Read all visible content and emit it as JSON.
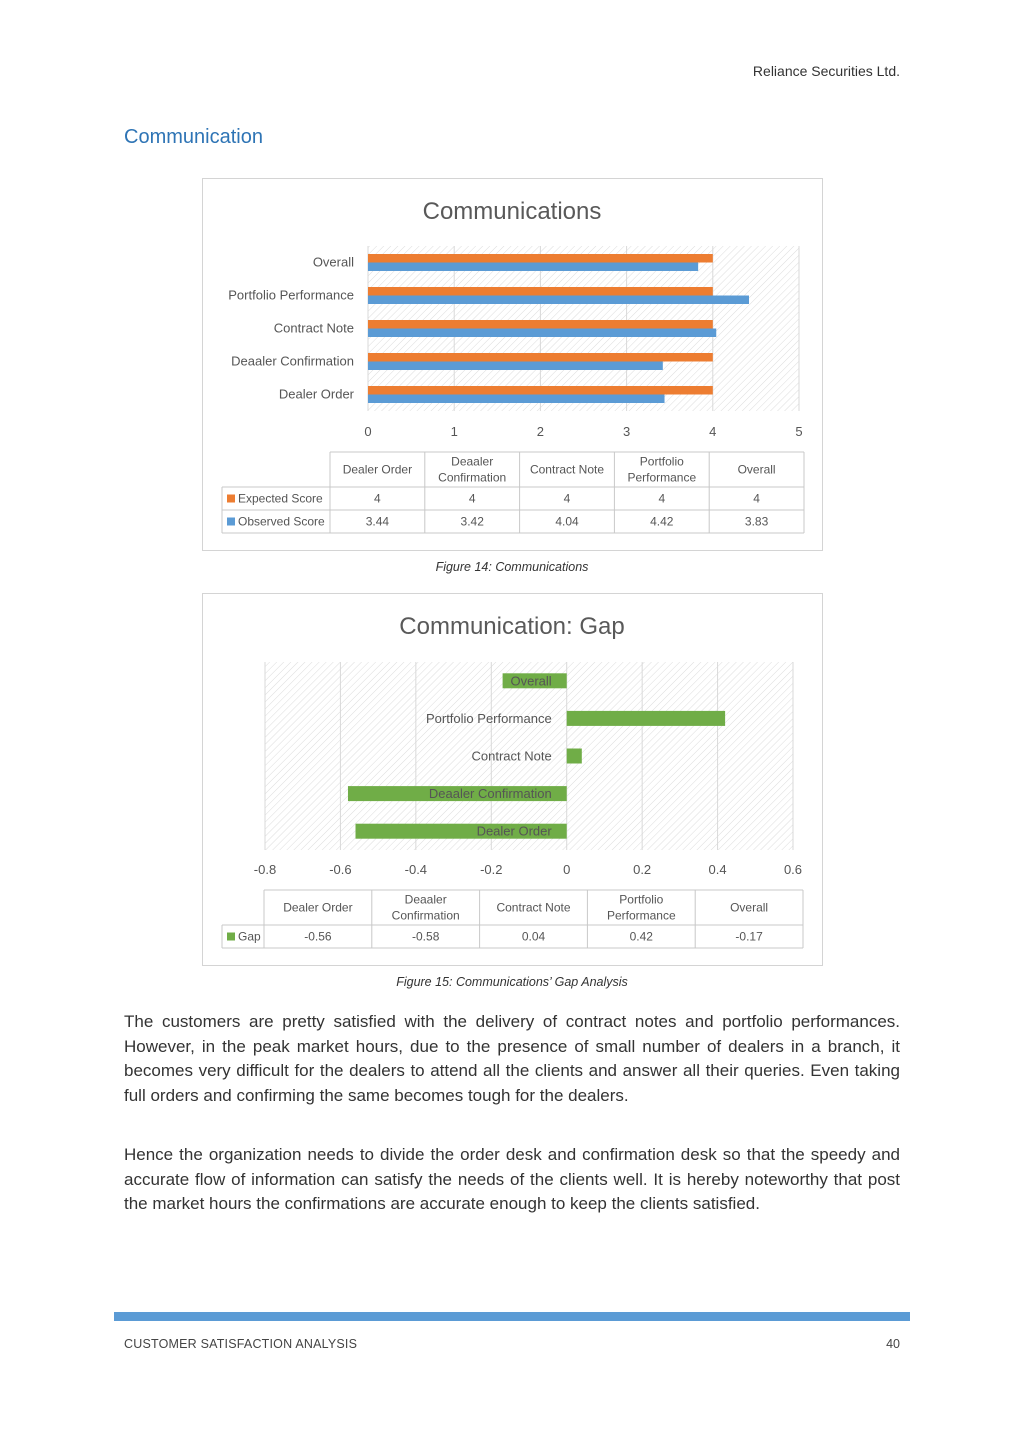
{
  "header": {
    "company": "Reliance Securities Ltd."
  },
  "section_heading": "Communication",
  "chart_data": [
    {
      "type": "bar",
      "orientation": "horizontal",
      "title": "Communications",
      "categories": [
        "Dealer Order",
        "Deaaler Confirmation",
        "Contract Note",
        "Portfolio Performance",
        "Overall"
      ],
      "table_headers": [
        [
          "Dealer Order"
        ],
        [
          "Deaaler",
          "Confirmation"
        ],
        [
          "Contract Note"
        ],
        [
          "Portfolio",
          "Performance"
        ],
        [
          "Overall"
        ]
      ],
      "series": [
        {
          "name": "Expected Score",
          "values": [
            4,
            4,
            4,
            4,
            4
          ],
          "color": "#ed7d31"
        },
        {
          "name": "Observed Score",
          "values": [
            3.44,
            3.42,
            4.04,
            4.42,
            3.83
          ],
          "color": "#5b9bd5"
        }
      ],
      "xlim": [
        0,
        5
      ],
      "ticks": [
        0,
        1,
        2,
        3,
        4,
        5
      ],
      "tick_labels": [
        "0",
        "1",
        "2",
        "3",
        "4",
        "5"
      ],
      "value_labels": [
        [
          "4",
          "4",
          "4",
          "4",
          "4"
        ],
        [
          "3.44",
          "3.42",
          "4.04",
          "4.42",
          "3.83"
        ]
      ],
      "grid": true,
      "legend": "data-table"
    },
    {
      "type": "bar",
      "orientation": "horizontal",
      "title": "Communication: Gap",
      "categories": [
        "Dealer Order",
        "Deaaler Confirmation",
        "Contract Note",
        "Portfolio Performance",
        "Overall"
      ],
      "table_headers": [
        [
          "Dealer Order"
        ],
        [
          "Deaaler",
          "Confirmation"
        ],
        [
          "Contract Note"
        ],
        [
          "Portfolio",
          "Performance"
        ],
        [
          "Overall"
        ]
      ],
      "series": [
        {
          "name": "Gap",
          "values": [
            -0.56,
            -0.58,
            0.04,
            0.42,
            -0.17
          ],
          "color": "#70ad47"
        }
      ],
      "xlim": [
        -0.8,
        0.6
      ],
      "ticks": [
        -0.8,
        -0.6,
        -0.4,
        -0.2,
        0,
        0.2,
        0.4,
        0.6
      ],
      "tick_labels": [
        "-0.8",
        "-0.6",
        "-0.4",
        "-0.2",
        "0",
        "0.2",
        "0.4",
        "0.6"
      ],
      "value_labels": [
        [
          "-0.56",
          "-0.58",
          "0.04",
          "0.42",
          "-0.17"
        ]
      ],
      "grid": true,
      "legend": "data-table"
    }
  ],
  "captions": {
    "figure14": "Figure 14: Communications",
    "figure15": "Figure 15: Communications’ Gap Analysis"
  },
  "body": {
    "paragraph1": "The customers are pretty satisfied with the delivery of contract notes and portfolio performances. However, in the peak market hours, due to the presence of small number of dealers in a branch, it becomes very difficult for the dealers to attend all the clients and answer all their queries. Even taking full orders and confirming the same becomes tough for the dealers.",
    "paragraph2": "Hence the organization needs to divide the order desk and confirmation desk so that the speedy and accurate flow of information can satisfy the needs of the clients well. It is hereby noteworthy that post the market hours the confirmations are accurate enough to keep the clients satisfied."
  },
  "footer": {
    "left": "CUSTOMER SATISFACTION ANALYSIS",
    "page_number": "40"
  }
}
